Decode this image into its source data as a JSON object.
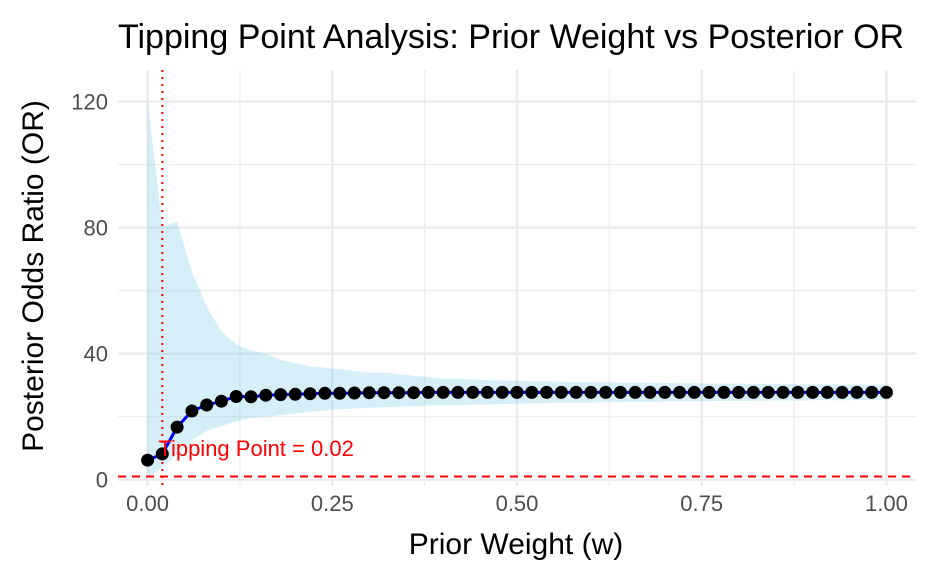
{
  "chart_data": {
    "type": "line",
    "title": "Tipping Point Analysis: Prior Weight vs Posterior OR",
    "xlabel": "Prior Weight (w)",
    "ylabel": "Posterior Odds Ratio (OR)",
    "xlim": [
      -0.04,
      1.04
    ],
    "ylim": [
      -2,
      130
    ],
    "x_ticks": [
      0.0,
      0.25,
      0.5,
      0.75,
      1.0
    ],
    "x_tick_labels": [
      "0.00",
      "0.25",
      "0.50",
      "0.75",
      "1.00"
    ],
    "y_ticks": [
      0,
      40,
      80,
      120
    ],
    "y_tick_labels": [
      "0",
      "40",
      "80",
      "120"
    ],
    "grid": true,
    "legend": "none",
    "colors": {
      "line": "#0000ff",
      "points": "#000000",
      "ribbon": "#87ceeb",
      "tipping_vline": "#ff0000",
      "reference_hline": "#ff0000",
      "grid": "#ebebeb"
    },
    "reference_line_y": 1,
    "tipping_point_x": 0.02,
    "annotation": "Tipping Point = 0.02",
    "x": [
      0.0,
      0.02,
      0.04,
      0.06,
      0.08,
      0.1,
      0.12,
      0.14,
      0.16,
      0.18,
      0.2,
      0.22,
      0.24,
      0.26,
      0.28,
      0.3,
      0.32,
      0.34,
      0.36,
      0.38,
      0.4,
      0.42,
      0.44,
      0.46,
      0.48,
      0.5,
      0.52,
      0.54,
      0.56,
      0.58,
      0.6,
      0.62,
      0.64,
      0.66,
      0.68,
      0.7,
      0.72,
      0.74,
      0.76,
      0.78,
      0.8,
      0.82,
      0.84,
      0.86,
      0.88,
      0.9,
      0.92,
      0.94,
      0.96,
      0.98,
      1.0
    ],
    "series": [
      {
        "y": [
          6.2,
          8.2,
          16.7,
          21.8,
          23.7,
          24.9,
          26.4,
          26.3,
          26.8,
          27.0,
          27.1,
          27.3,
          27.4,
          27.4,
          27.5,
          27.6,
          27.6,
          27.6,
          27.6,
          27.7,
          27.7,
          27.7,
          27.7,
          27.7,
          27.7,
          27.7,
          27.7,
          27.7,
          27.7,
          27.7,
          27.7,
          27.7,
          27.7,
          27.7,
          27.7,
          27.7,
          27.7,
          27.7,
          27.7,
          27.7,
          27.7,
          27.7,
          27.7,
          27.7,
          27.7,
          27.7,
          27.7,
          27.7,
          27.7,
          27.7,
          27.7
        ],
        "lower": [
          0.5,
          4.0,
          8.0,
          12.5,
          15.5,
          17.0,
          18.5,
          19.5,
          20.0,
          20.5,
          21.0,
          21.5,
          22.0,
          22.3,
          22.6,
          22.8,
          23.0,
          23.2,
          23.4,
          23.5,
          23.6,
          23.7,
          23.8,
          23.9,
          24.0,
          24.1,
          24.2,
          24.3,
          24.4,
          24.5,
          24.5,
          24.6,
          24.6,
          24.7,
          24.7,
          24.8,
          24.8,
          24.9,
          24.9,
          25.0,
          25.0,
          25.0,
          25.1,
          25.1,
          25.1,
          25.2,
          25.2,
          25.2,
          25.3,
          25.3,
          25.3
        ],
        "upper": [
          121.0,
          80.0,
          82.0,
          66.0,
          55.0,
          47.0,
          43.0,
          41.0,
          40.0,
          38.0,
          37.0,
          36.0,
          35.5,
          35.0,
          34.5,
          34.0,
          34.0,
          33.5,
          33.0,
          32.5,
          32.0,
          32.0,
          31.8,
          31.6,
          31.5,
          31.4,
          31.3,
          31.2,
          31.1,
          31.0,
          31.0,
          30.9,
          30.8,
          30.8,
          30.7,
          30.7,
          30.6,
          30.6,
          30.5,
          30.5,
          30.5,
          30.4,
          30.4,
          30.4,
          30.3,
          30.3,
          30.3,
          30.3,
          30.2,
          30.2,
          30.2
        ]
      }
    ]
  }
}
